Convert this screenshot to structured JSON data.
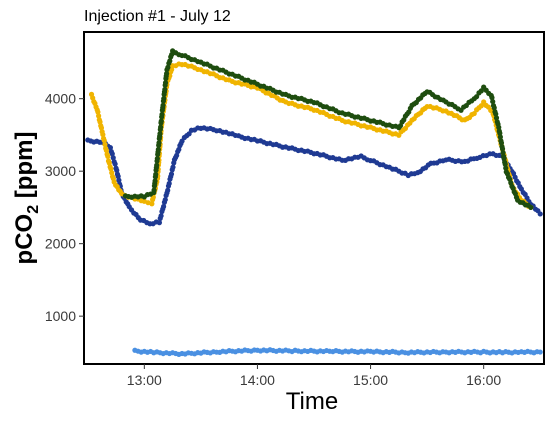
{
  "chart_data": {
    "type": "scatter",
    "title": "Injection #1 - July 12",
    "xlabel": "Time",
    "ylabel": {
      "main": "pCO",
      "sub": "2",
      "unit": " [ppm]"
    },
    "xlim": [
      "12:28",
      "16:32"
    ],
    "ylim": [
      340,
      4920
    ],
    "x_ticks": [
      "13:00",
      "14:00",
      "15:00",
      "16:00"
    ],
    "y_ticks": [
      1000,
      2000,
      3000,
      4000
    ],
    "grid": false,
    "legend": "none",
    "series": [
      {
        "color": "#4a90e2",
        "points": [
          [
            "12:55",
            520
          ],
          [
            "13:05",
            500
          ],
          [
            "13:20",
            480
          ],
          [
            "13:40",
            510
          ],
          [
            "14:00",
            530
          ],
          [
            "14:20",
            520
          ],
          [
            "14:40",
            515
          ],
          [
            "15:00",
            510
          ],
          [
            "15:20",
            500
          ],
          [
            "15:40",
            505
          ],
          [
            "16:00",
            505
          ],
          [
            "16:10",
            500
          ],
          [
            "16:20",
            505
          ],
          [
            "16:30",
            505
          ]
        ]
      },
      {
        "color": "#1f3a93",
        "points": [
          [
            "12:30",
            3420
          ],
          [
            "12:38",
            3400
          ],
          [
            "12:42",
            3320
          ],
          [
            "12:45",
            3050
          ],
          [
            "12:48",
            2700
          ],
          [
            "12:52",
            2500
          ],
          [
            "12:58",
            2330
          ],
          [
            "13:03",
            2270
          ],
          [
            "13:08",
            2300
          ],
          [
            "13:12",
            2700
          ],
          [
            "13:16",
            3150
          ],
          [
            "13:20",
            3420
          ],
          [
            "13:25",
            3560
          ],
          [
            "13:30",
            3600
          ],
          [
            "13:40",
            3560
          ],
          [
            "13:50",
            3480
          ],
          [
            "14:00",
            3420
          ],
          [
            "14:15",
            3330
          ],
          [
            "14:30",
            3250
          ],
          [
            "14:45",
            3150
          ],
          [
            "14:55",
            3200
          ],
          [
            "15:00",
            3150
          ],
          [
            "15:10",
            3050
          ],
          [
            "15:20",
            2950
          ],
          [
            "15:25",
            2980
          ],
          [
            "15:32",
            3100
          ],
          [
            "15:40",
            3160
          ],
          [
            "15:50",
            3130
          ],
          [
            "15:58",
            3200
          ],
          [
            "16:05",
            3240
          ],
          [
            "16:10",
            3200
          ],
          [
            "16:15",
            3000
          ],
          [
            "16:20",
            2750
          ],
          [
            "16:25",
            2550
          ],
          [
            "16:30",
            2410
          ]
        ]
      },
      {
        "color": "#f0b400",
        "points": [
          [
            "12:32",
            4050
          ],
          [
            "12:35",
            3850
          ],
          [
            "12:38",
            3500
          ],
          [
            "12:41",
            3150
          ],
          [
            "12:44",
            2850
          ],
          [
            "12:48",
            2680
          ],
          [
            "12:55",
            2620
          ],
          [
            "13:00",
            2580
          ],
          [
            "13:04",
            2560
          ],
          [
            "13:07",
            2900
          ],
          [
            "13:09",
            3600
          ],
          [
            "13:12",
            4200
          ],
          [
            "13:15",
            4450
          ],
          [
            "13:20",
            4480
          ],
          [
            "13:30",
            4400
          ],
          [
            "13:45",
            4250
          ],
          [
            "14:00",
            4150
          ],
          [
            "14:15",
            3950
          ],
          [
            "14:30",
            3850
          ],
          [
            "14:45",
            3700
          ],
          [
            "15:00",
            3600
          ],
          [
            "15:15",
            3500
          ],
          [
            "15:22",
            3700
          ],
          [
            "15:30",
            3900
          ],
          [
            "15:40",
            3830
          ],
          [
            "15:50",
            3700
          ],
          [
            "15:55",
            3800
          ],
          [
            "16:00",
            3950
          ],
          [
            "16:05",
            3800
          ],
          [
            "16:10",
            3300
          ],
          [
            "16:15",
            2800
          ],
          [
            "16:20",
            2600
          ],
          [
            "16:25",
            2500
          ]
        ]
      },
      {
        "color": "#1e4d0f",
        "points": [
          [
            "12:50",
            2650
          ],
          [
            "13:00",
            2650
          ],
          [
            "13:05",
            2700
          ],
          [
            "13:09",
            3700
          ],
          [
            "13:12",
            4400
          ],
          [
            "13:15",
            4650
          ],
          [
            "13:20",
            4600
          ],
          [
            "13:30",
            4500
          ],
          [
            "13:45",
            4350
          ],
          [
            "14:00",
            4200
          ],
          [
            "14:15",
            4050
          ],
          [
            "14:30",
            3950
          ],
          [
            "14:45",
            3800
          ],
          [
            "15:00",
            3700
          ],
          [
            "15:15",
            3600
          ],
          [
            "15:22",
            3900
          ],
          [
            "15:30",
            4100
          ],
          [
            "15:40",
            3950
          ],
          [
            "15:48",
            3850
          ],
          [
            "15:55",
            4000
          ],
          [
            "16:00",
            4150
          ],
          [
            "16:04",
            4050
          ],
          [
            "16:08",
            3600
          ],
          [
            "16:12",
            3000
          ],
          [
            "16:18",
            2600
          ],
          [
            "16:25",
            2500
          ]
        ]
      }
    ]
  }
}
